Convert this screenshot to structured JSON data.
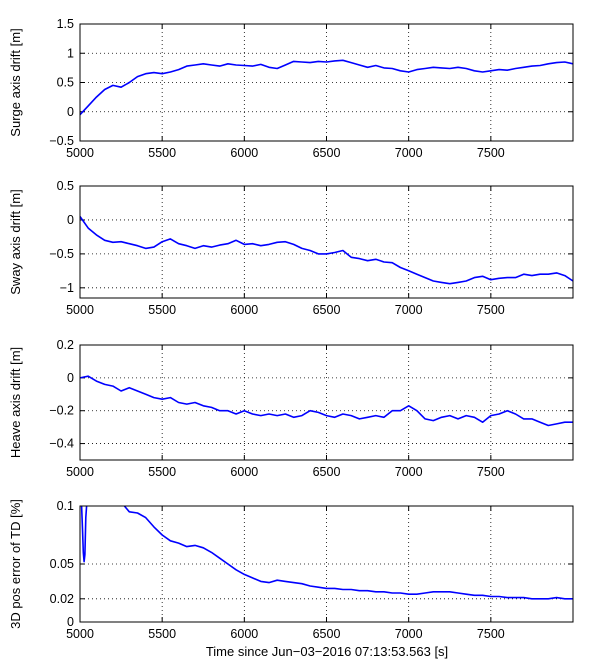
{
  "figure": {
    "xlabel": "Time since Jun−03−2016 07:13:53.563 [s]",
    "line_color": "#0000ff"
  },
  "chart_data": [
    {
      "type": "line",
      "ylabel": "Surge axis drift [m]",
      "xlim": [
        5000,
        8000
      ],
      "ylim": [
        -0.5,
        1.5
      ],
      "grid": true,
      "xticks": [
        5000,
        5500,
        6000,
        6500,
        7000,
        7500
      ],
      "xtick_labels": [
        "5000",
        "5500",
        "6000",
        "6500",
        "7000",
        "7500"
      ],
      "yticks": [
        -0.5,
        0,
        0.5,
        1,
        1.5
      ],
      "ytick_labels": [
        "−0.5",
        "0",
        "0.5",
        "1",
        "1.5"
      ],
      "series": [
        {
          "x": [
            5000,
            5050,
            5100,
            5150,
            5200,
            5250,
            5300,
            5350,
            5400,
            5450,
            5500,
            5550,
            5600,
            5650,
            5700,
            5750,
            5800,
            5850,
            5900,
            5950,
            6000,
            6050,
            6100,
            6150,
            6200,
            6250,
            6300,
            6350,
            6400,
            6450,
            6500,
            6550,
            6600,
            6650,
            6700,
            6750,
            6800,
            6850,
            6900,
            6950,
            7000,
            7050,
            7100,
            7150,
            7200,
            7250,
            7300,
            7350,
            7400,
            7450,
            7500,
            7550,
            7600,
            7650,
            7700,
            7750,
            7800,
            7850,
            7900,
            7950,
            8000
          ],
          "y": [
            -0.05,
            0.1,
            0.25,
            0.38,
            0.45,
            0.42,
            0.5,
            0.6,
            0.65,
            0.67,
            0.65,
            0.68,
            0.72,
            0.78,
            0.8,
            0.82,
            0.8,
            0.78,
            0.82,
            0.8,
            0.79,
            0.78,
            0.81,
            0.76,
            0.74,
            0.8,
            0.86,
            0.85,
            0.84,
            0.86,
            0.85,
            0.87,
            0.88,
            0.84,
            0.8,
            0.76,
            0.79,
            0.75,
            0.74,
            0.7,
            0.68,
            0.72,
            0.74,
            0.76,
            0.75,
            0.74,
            0.76,
            0.74,
            0.7,
            0.68,
            0.7,
            0.72,
            0.71,
            0.74,
            0.76,
            0.78,
            0.79,
            0.82,
            0.84,
            0.85,
            0.82
          ]
        }
      ]
    },
    {
      "type": "line",
      "ylabel": "Sway axis drift [m]",
      "xlim": [
        5000,
        8000
      ],
      "ylim": [
        -1.15,
        0.5
      ],
      "grid": true,
      "xticks": [
        5000,
        5500,
        6000,
        6500,
        7000,
        7500
      ],
      "xtick_labels": [
        "5000",
        "5500",
        "6000",
        "6500",
        "7000",
        "7500"
      ],
      "yticks": [
        -1,
        -0.5,
        0,
        0.5
      ],
      "ytick_labels": [
        "−1",
        "−0.5",
        "0",
        "0.5"
      ],
      "series": [
        {
          "x": [
            5000,
            5050,
            5100,
            5150,
            5200,
            5250,
            5300,
            5350,
            5400,
            5450,
            5500,
            5550,
            5600,
            5650,
            5700,
            5750,
            5800,
            5850,
            5900,
            5950,
            6000,
            6050,
            6100,
            6150,
            6200,
            6250,
            6300,
            6350,
            6400,
            6450,
            6500,
            6550,
            6600,
            6650,
            6700,
            6750,
            6800,
            6850,
            6900,
            6950,
            7000,
            7050,
            7100,
            7150,
            7200,
            7250,
            7300,
            7350,
            7400,
            7450,
            7500,
            7550,
            7600,
            7650,
            7700,
            7750,
            7800,
            7850,
            7900,
            7950,
            8000
          ],
          "y": [
            0.05,
            -0.12,
            -0.22,
            -0.3,
            -0.33,
            -0.32,
            -0.35,
            -0.38,
            -0.42,
            -0.4,
            -0.32,
            -0.28,
            -0.35,
            -0.38,
            -0.42,
            -0.38,
            -0.4,
            -0.37,
            -0.35,
            -0.3,
            -0.36,
            -0.35,
            -0.38,
            -0.36,
            -0.33,
            -0.32,
            -0.36,
            -0.42,
            -0.45,
            -0.5,
            -0.5,
            -0.48,
            -0.45,
            -0.55,
            -0.57,
            -0.6,
            -0.58,
            -0.62,
            -0.63,
            -0.7,
            -0.75,
            -0.8,
            -0.85,
            -0.9,
            -0.92,
            -0.94,
            -0.92,
            -0.9,
            -0.85,
            -0.83,
            -0.88,
            -0.86,
            -0.85,
            -0.85,
            -0.8,
            -0.82,
            -0.8,
            -0.8,
            -0.78,
            -0.82,
            -0.9
          ]
        }
      ]
    },
    {
      "type": "line",
      "ylabel": "Heave axis drift [m]",
      "xlim": [
        5000,
        8000
      ],
      "ylim": [
        -0.5,
        0.2
      ],
      "grid": true,
      "xticks": [
        5000,
        5500,
        6000,
        6500,
        7000,
        7500
      ],
      "xtick_labels": [
        "5000",
        "5500",
        "6000",
        "6500",
        "7000",
        "7500"
      ],
      "yticks": [
        -0.4,
        -0.2,
        0,
        0.2
      ],
      "ytick_labels": [
        "−0.4",
        "−0.2",
        "0",
        "0.2"
      ],
      "series": [
        {
          "x": [
            5000,
            5050,
            5100,
            5150,
            5200,
            5250,
            5300,
            5350,
            5400,
            5450,
            5500,
            5550,
            5600,
            5650,
            5700,
            5750,
            5800,
            5850,
            5900,
            5950,
            6000,
            6050,
            6100,
            6150,
            6200,
            6250,
            6300,
            6350,
            6400,
            6450,
            6500,
            6550,
            6600,
            6650,
            6700,
            6750,
            6800,
            6850,
            6900,
            6950,
            7000,
            7050,
            7100,
            7150,
            7200,
            7250,
            7300,
            7350,
            7400,
            7450,
            7500,
            7550,
            7600,
            7650,
            7700,
            7750,
            7800,
            7850,
            7900,
            7950,
            8000
          ],
          "y": [
            0.0,
            0.01,
            -0.02,
            -0.04,
            -0.05,
            -0.08,
            -0.06,
            -0.08,
            -0.1,
            -0.12,
            -0.13,
            -0.12,
            -0.15,
            -0.16,
            -0.15,
            -0.17,
            -0.18,
            -0.2,
            -0.2,
            -0.22,
            -0.2,
            -0.22,
            -0.23,
            -0.22,
            -0.23,
            -0.22,
            -0.24,
            -0.23,
            -0.2,
            -0.21,
            -0.23,
            -0.24,
            -0.22,
            -0.23,
            -0.25,
            -0.24,
            -0.23,
            -0.24,
            -0.2,
            -0.2,
            -0.17,
            -0.2,
            -0.25,
            -0.26,
            -0.24,
            -0.23,
            -0.25,
            -0.23,
            -0.24,
            -0.27,
            -0.23,
            -0.22,
            -0.2,
            -0.22,
            -0.25,
            -0.25,
            -0.27,
            -0.29,
            -0.28,
            -0.27,
            -0.27
          ]
        }
      ]
    },
    {
      "type": "line",
      "ylabel": "3D pos error of TD [%]",
      "xlim": [
        5000,
        8000
      ],
      "ylim": [
        0,
        0.1
      ],
      "grid": true,
      "xticks": [
        5000,
        5500,
        6000,
        6500,
        7000,
        7500
      ],
      "xtick_labels": [
        "5000",
        "5500",
        "6000",
        "6500",
        "7000",
        "7500"
      ],
      "yticks": [
        0,
        0.02,
        0.05,
        0.1
      ],
      "ytick_labels": [
        "0",
        "0.02",
        "0.05",
        "0.1"
      ],
      "series": [
        {
          "x": [
            5010,
            5015,
            5020,
            5025,
            5030,
            5035,
            5040,
            null,
            5270,
            5300,
            5350,
            5400,
            5450,
            5500,
            5550,
            5600,
            5650,
            5700,
            5750,
            5800,
            5850,
            5900,
            5950,
            6000,
            6050,
            6100,
            6150,
            6200,
            6250,
            6300,
            6350,
            6400,
            6450,
            6500,
            6550,
            6600,
            6650,
            6700,
            6750,
            6800,
            6850,
            6900,
            6950,
            7000,
            7050,
            7100,
            7150,
            7200,
            7250,
            7300,
            7350,
            7400,
            7450,
            7500,
            7550,
            7600,
            7650,
            7700,
            7750,
            7800,
            7850,
            7900,
            7950,
            8000
          ],
          "y": [
            0.1,
            0.08,
            0.06,
            0.052,
            0.058,
            0.09,
            0.1,
            null,
            0.1,
            0.095,
            0.094,
            0.09,
            0.082,
            0.075,
            0.07,
            0.068,
            0.065,
            0.066,
            0.064,
            0.06,
            0.055,
            0.05,
            0.045,
            0.041,
            0.038,
            0.035,
            0.034,
            0.036,
            0.035,
            0.034,
            0.033,
            0.031,
            0.03,
            0.029,
            0.029,
            0.028,
            0.028,
            0.027,
            0.027,
            0.026,
            0.026,
            0.025,
            0.025,
            0.024,
            0.024,
            0.025,
            0.026,
            0.026,
            0.026,
            0.025,
            0.024,
            0.023,
            0.023,
            0.022,
            0.022,
            0.021,
            0.021,
            0.021,
            0.02,
            0.02,
            0.02,
            0.021,
            0.02,
            0.02
          ]
        }
      ]
    }
  ]
}
